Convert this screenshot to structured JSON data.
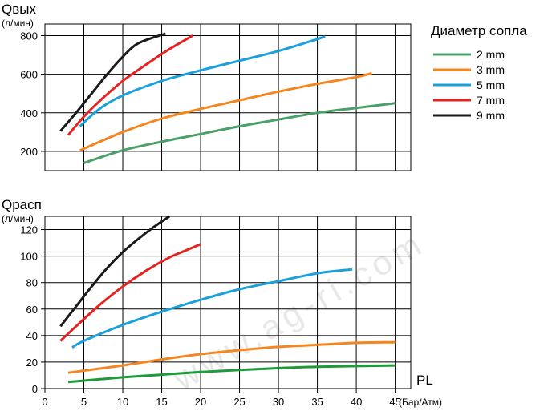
{
  "legend": {
    "title": "Диаметр сопла",
    "items": [
      {
        "label": "2 mm",
        "color": "#4aa06a"
      },
      {
        "label": "3 mm",
        "color": "#f5861f"
      },
      {
        "label": "5 mm",
        "color": "#1aa0dc"
      },
      {
        "label": "7 mm",
        "color": "#e52421"
      },
      {
        "label": "9 mm",
        "color": "#1a1a1a"
      }
    ]
  },
  "chart_data": [
    {
      "type": "line",
      "title": "",
      "ylabel": "Qвых",
      "yunit": "(л/мин)",
      "xlim": [
        0,
        47
      ],
      "ylim": [
        100,
        860
      ],
      "y_ticks": [
        200,
        400,
        600,
        800
      ],
      "x_gridlines": [
        5,
        10,
        15,
        20,
        25,
        30,
        35,
        40,
        45
      ],
      "grid": true,
      "legend_position": "right",
      "series": [
        {
          "name": "2 mm",
          "color": "#4aa06a",
          "x": [
            5,
            10,
            15,
            20,
            25,
            30,
            35,
            40,
            45
          ],
          "y": [
            140,
            205,
            250,
            290,
            330,
            365,
            400,
            425,
            450
          ]
        },
        {
          "name": "3 mm",
          "color": "#f5861f",
          "x": [
            4.5,
            10,
            15,
            20,
            25,
            30,
            35,
            40,
            42
          ],
          "y": [
            205,
            300,
            370,
            420,
            465,
            510,
            550,
            585,
            605
          ]
        },
        {
          "name": "5 mm",
          "color": "#1aa0dc",
          "x": [
            4.5,
            7,
            10,
            15,
            20,
            25,
            30,
            36
          ],
          "y": [
            330,
            420,
            490,
            565,
            620,
            670,
            720,
            795
          ]
        },
        {
          "name": "7 mm",
          "color": "#e52421",
          "x": [
            3,
            5,
            7,
            10,
            13,
            16,
            19
          ],
          "y": [
            285,
            380,
            460,
            565,
            650,
            730,
            800
          ]
        },
        {
          "name": "9 mm",
          "color": "#1a1a1a",
          "x": [
            2,
            4,
            6,
            8,
            10,
            12,
            15.5
          ],
          "y": [
            305,
            400,
            500,
            600,
            690,
            760,
            810
          ]
        }
      ]
    },
    {
      "type": "line",
      "title": "",
      "ylabel": "Qрасп",
      "yunit": "(л/мин)",
      "xlabel": "PL",
      "xunit": "(Бар/Атм)",
      "xlim": [
        0,
        47
      ],
      "ylim": [
        0,
        130
      ],
      "x_ticks": [
        0,
        5,
        10,
        15,
        20,
        25,
        30,
        35,
        40,
        45
      ],
      "y_ticks": [
        0,
        20,
        40,
        60,
        80,
        100,
        120
      ],
      "grid": true,
      "series": [
        {
          "name": "2 mm",
          "color": "#1e9a3a",
          "x": [
            3,
            10,
            15,
            20,
            25,
            30,
            35,
            40,
            45
          ],
          "y": [
            5,
            8.5,
            10.5,
            12.5,
            14,
            15.5,
            16.5,
            17,
            17.5
          ]
        },
        {
          "name": "3 mm",
          "color": "#f5861f",
          "x": [
            3,
            10,
            15,
            20,
            25,
            30,
            35,
            40,
            45
          ],
          "y": [
            12,
            17.5,
            22,
            26,
            29,
            31.5,
            33,
            34.5,
            35
          ]
        },
        {
          "name": "5 mm",
          "color": "#1aa0dc",
          "x": [
            3.5,
            5,
            10,
            15,
            20,
            25,
            30,
            35,
            39.5
          ],
          "y": [
            31,
            36,
            48,
            58,
            67,
            75,
            81,
            87,
            90
          ]
        },
        {
          "name": "7 mm",
          "color": "#e52421",
          "x": [
            2,
            4,
            7,
            10,
            13,
            16,
            18,
            20
          ],
          "y": [
            36,
            47,
            63,
            77,
            89,
            99,
            104,
            109
          ]
        },
        {
          "name": "9 mm",
          "color": "#1a1a1a",
          "x": [
            2,
            4,
            6,
            8,
            10,
            12,
            14,
            16
          ],
          "y": [
            47,
            62,
            77,
            91,
            103,
            113,
            122,
            130
          ]
        }
      ]
    }
  ],
  "watermark": "www.ag-ri.com"
}
